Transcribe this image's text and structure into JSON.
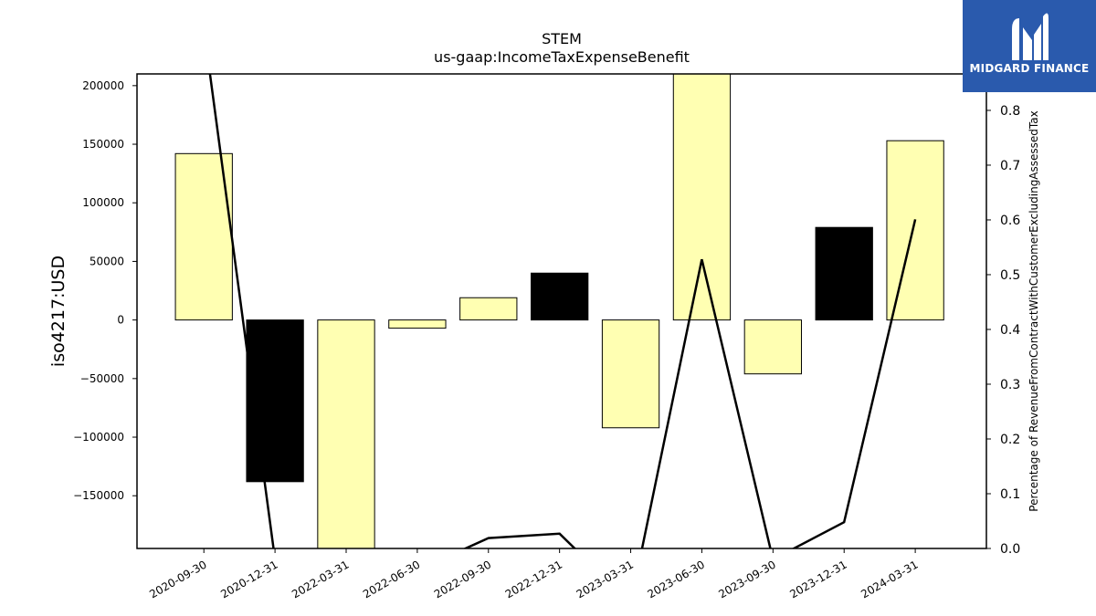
{
  "logo": {
    "name": "MIDGARD FINANCE",
    "icon": "mh-monogram-icon",
    "background": "#2a5aad"
  },
  "chart_data": {
    "type": "bar",
    "title": "STEM",
    "subtitle": "us-gaap:IncomeTaxExpenseBenefit",
    "ylabel": "iso4217:USD",
    "y2label": "Percentage of RevenueFromContractWithCustomerExcludingAssessedTax",
    "categories": [
      "2020-09-30",
      "2020-12-31",
      "2022-03-31",
      "2022-06-30",
      "2022-09-30",
      "2022-12-31",
      "2023-03-31",
      "2023-06-30",
      "2023-09-30",
      "2023-12-31",
      "2024-03-31"
    ],
    "ylim": [
      -195000,
      210000
    ],
    "y_ticks": [
      200000,
      150000,
      100000,
      50000,
      0,
      -50000,
      -100000,
      -150000
    ],
    "y_tick_labels": [
      "200000",
      "150000",
      "100000",
      "50000",
      "0",
      "−50000",
      "−100000",
      "−150000"
    ],
    "y2lim": [
      0,
      0.8666
    ],
    "y2_ticks": [
      0.0,
      0.1,
      0.2,
      0.3,
      0.4,
      0.5,
      0.6,
      0.7,
      0.8
    ],
    "y2_tick_labels": [
      "0.0",
      "0.1",
      "0.2",
      "0.3",
      "0.4",
      "0.5",
      "0.6",
      "0.7",
      "0.8"
    ],
    "series": [
      {
        "type": "bar",
        "values": [
          142000,
          -138000,
          -200000,
          -7000,
          19000,
          40000,
          -92000,
          215000,
          -46000,
          79000,
          153000
        ],
        "colors": [
          "#ffffb2",
          "#000000",
          "#ffffb2",
          "#ffffb2",
          "#ffffb2",
          "#000000",
          "#ffffb2",
          "#ffffb2",
          "#ffffb2",
          "#000000",
          "#ffffb2"
        ]
      },
      {
        "type": "line",
        "axis": "right",
        "color": "#000000",
        "values": [
          0.95,
          -0.02,
          -0.15,
          -0.04,
          0.019,
          0.027,
          -0.1,
          0.528,
          -0.02,
          0.048,
          0.601
        ]
      }
    ],
    "grid": false
  }
}
